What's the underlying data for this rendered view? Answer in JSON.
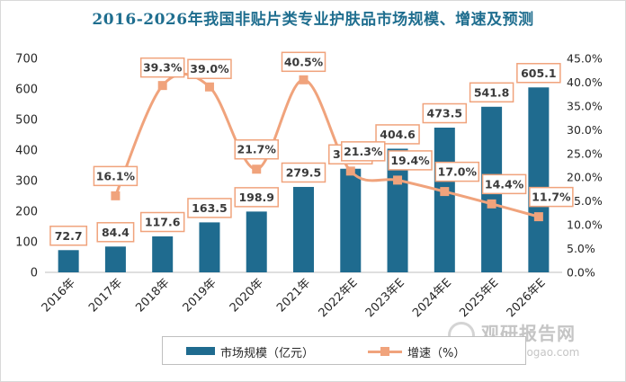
{
  "title": "2016-2026年我国非贴片类专业护肤品市场规模、增速及预测",
  "legend": {
    "bar_label": "市场规模（亿元）",
    "line_label": "增速（%）"
  },
  "watermark": {
    "cn": "观研报告网",
    "en": "chinabaogao.com"
  },
  "colors": {
    "bar": "#1f6b8f",
    "line": "#f0a37c",
    "label_border": "#f0a37c",
    "title": "#1f6e8f"
  },
  "chart_data": {
    "type": "bar",
    "title": "2016-2026年我国非贴片类专业护肤品市场规模、增速及预测",
    "categories": [
      "2016年",
      "2017年",
      "2018年",
      "2019年",
      "2020年",
      "2021年",
      "2022年E",
      "2023年E",
      "2024年E",
      "2025年E",
      "2026年E"
    ],
    "series": [
      {
        "name": "市场规模（亿元）",
        "type": "bar",
        "axis": "left",
        "values": [
          72.7,
          84.4,
          117.6,
          163.5,
          198.9,
          279.5,
          339.0,
          404.6,
          473.5,
          541.8,
          605.1
        ],
        "labels": [
          "72.7",
          "84.4",
          "117.6",
          "163.5",
          "198.9",
          "279.5",
          "339.0",
          "404.6",
          "473.5",
          "541.8",
          "605.1"
        ]
      },
      {
        "name": "增速（%）",
        "type": "line",
        "axis": "right",
        "smooth": true,
        "values": [
          null,
          16.1,
          39.3,
          39.0,
          21.7,
          40.5,
          21.3,
          19.4,
          17.0,
          14.4,
          11.7
        ],
        "labels": [
          "",
          "16.1%",
          "39.3%",
          "39.0%",
          "21.7%",
          "40.5%",
          "21.3%",
          "19.4%",
          "17.0%",
          "14.4%",
          "11.7%"
        ]
      }
    ],
    "y_left": {
      "ylim": [
        0,
        700
      ],
      "ticks": [
        "0",
        "100",
        "200",
        "300",
        "400",
        "500",
        "600",
        "700"
      ]
    },
    "y_right": {
      "ylim": [
        0,
        45
      ],
      "ticks": [
        "0.0%",
        "5.0%",
        "10.0%",
        "15.0%",
        "20.0%",
        "25.0%",
        "30.0%",
        "35.0%",
        "40.0%",
        "45.0%"
      ]
    },
    "grid": false,
    "legend_position": "bottom"
  }
}
